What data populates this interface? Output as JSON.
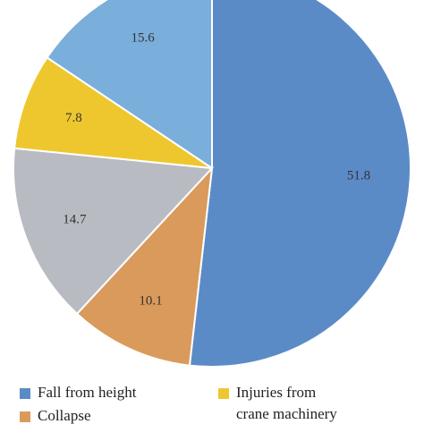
{
  "chart_data": {
    "type": "pie",
    "categories": [
      "Fall from height",
      "Collapse",
      null,
      "Injuries from crane machinery",
      null
    ],
    "values": [
      51.8,
      10.1,
      14.7,
      7.8,
      15.6
    ],
    "colors": [
      "#5b8bc7",
      "#da9a5b",
      "#b9bbc3",
      "#eec72f",
      "#7aaedb"
    ]
  }
}
